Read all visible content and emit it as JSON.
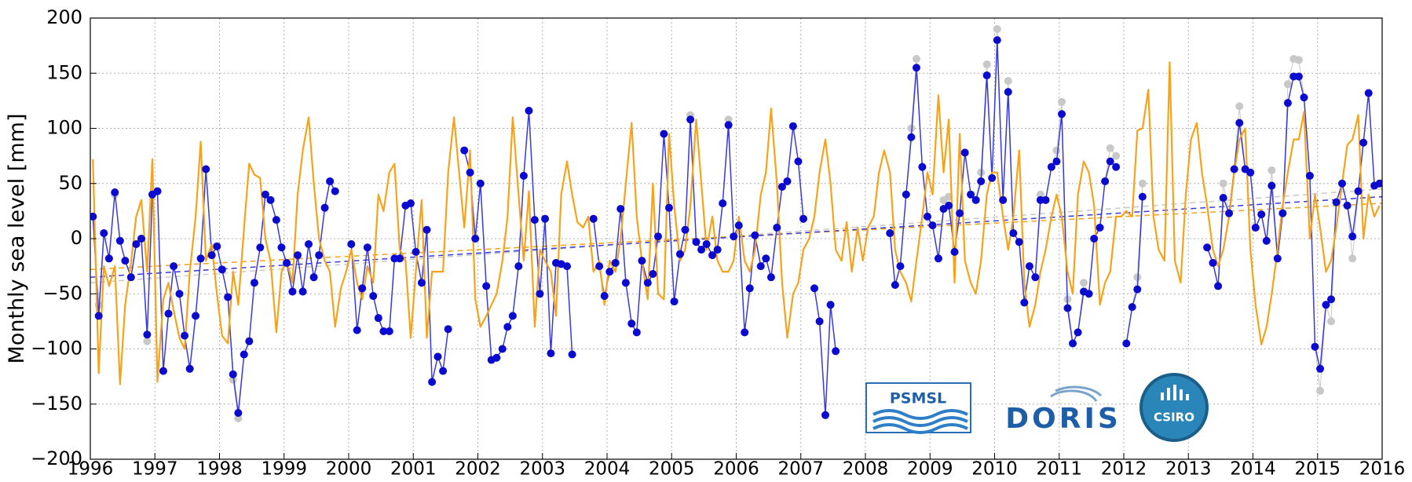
{
  "chart_data": {
    "type": "line",
    "y_label": "Monthly sea level [mm]",
    "xlim": [
      1996,
      2016
    ],
    "xticks": [
      1996,
      1997,
      1998,
      1999,
      2000,
      2001,
      2002,
      2003,
      2004,
      2005,
      2006,
      2007,
      2008,
      2009,
      2010,
      2011,
      2012,
      2013,
      2014,
      2015,
      2016
    ],
    "ylim": [
      -200,
      200
    ],
    "yticks": [
      {
        "value": -200,
        "label": "−200"
      },
      {
        "value": -150,
        "label": "−150"
      },
      {
        "value": -100,
        "label": "−100"
      },
      {
        "value": -50,
        "label": "−50"
      },
      0,
      50,
      100,
      150,
      200
    ],
    "grid": true,
    "x": [
      1996.04,
      1996.13,
      1996.21,
      1996.29,
      1996.38,
      1996.46,
      1996.54,
      1996.63,
      1996.71,
      1996.79,
      1996.88,
      1996.96,
      1997.04,
      1997.13,
      1997.21,
      1997.29,
      1997.38,
      1997.46,
      1997.54,
      1997.63,
      1997.71,
      1997.79,
      1997.88,
      1997.96,
      1998.04,
      1998.13,
      1998.21,
      1998.29,
      1998.38,
      1998.46,
      1998.54,
      1998.63,
      1998.71,
      1998.79,
      1998.88,
      1998.96,
      1999.04,
      1999.13,
      1999.21,
      1999.29,
      1999.38,
      1999.46,
      1999.54,
      1999.63,
      1999.71,
      1999.79,
      1999.88,
      1999.96,
      2000.04,
      2000.13,
      2000.21,
      2000.29,
      2000.38,
      2000.46,
      2000.54,
      2000.63,
      2000.71,
      2000.79,
      2000.88,
      2000.96,
      2001.04,
      2001.13,
      2001.21,
      2001.29,
      2001.38,
      2001.46,
      2001.54,
      2001.63,
      2001.71,
      2001.79,
      2001.88,
      2001.96,
      2002.04,
      2002.13,
      2002.21,
      2002.29,
      2002.38,
      2002.46,
      2002.54,
      2002.63,
      2002.71,
      2002.79,
      2002.88,
      2002.96,
      2003.04,
      2003.13,
      2003.21,
      2003.29,
      2003.38,
      2003.46,
      2003.54,
      2003.63,
      2003.71,
      2003.79,
      2003.88,
      2003.96,
      2004.04,
      2004.13,
      2004.21,
      2004.29,
      2004.38,
      2004.46,
      2004.54,
      2004.63,
      2004.71,
      2004.79,
      2004.88,
      2004.96,
      2005.04,
      2005.13,
      2005.21,
      2005.29,
      2005.38,
      2005.46,
      2005.54,
      2005.63,
      2005.71,
      2005.79,
      2005.88,
      2005.96,
      2006.04,
      2006.13,
      2006.21,
      2006.29,
      2006.38,
      2006.46,
      2006.54,
      2006.63,
      2006.71,
      2006.79,
      2006.88,
      2006.96,
      2007.04,
      2007.13,
      2007.21,
      2007.29,
      2007.38,
      2007.46,
      2007.54,
      2007.63,
      2007.71,
      2007.79,
      2007.88,
      2007.96,
      2008.04,
      2008.13,
      2008.21,
      2008.29,
      2008.38,
      2008.46,
      2008.54,
      2008.63,
      2008.71,
      2008.79,
      2008.88,
      2008.96,
      2009.04,
      2009.13,
      2009.21,
      2009.29,
      2009.38,
      2009.46,
      2009.54,
      2009.63,
      2009.71,
      2009.79,
      2009.88,
      2009.96,
      2010.04,
      2010.13,
      2010.21,
      2010.29,
      2010.38,
      2010.46,
      2010.54,
      2010.63,
      2010.71,
      2010.79,
      2010.88,
      2010.96,
      2011.04,
      2011.13,
      2011.21,
      2011.29,
      2011.38,
      2011.46,
      2011.54,
      2011.63,
      2011.71,
      2011.79,
      2011.88,
      2011.96,
      2012.04,
      2012.13,
      2012.21,
      2012.29,
      2012.38,
      2012.46,
      2012.54,
      2012.63,
      2012.71,
      2012.79,
      2012.88,
      2012.96,
      2013.04,
      2013.13,
      2013.21,
      2013.29,
      2013.38,
      2013.46,
      2013.54,
      2013.63,
      2013.71,
      2013.79,
      2013.88,
      2013.96,
      2014.04,
      2014.13,
      2014.21,
      2014.29,
      2014.38,
      2014.46,
      2014.54,
      2014.63,
      2014.71,
      2014.79,
      2014.88,
      2014.96,
      2015.04,
      2015.13,
      2015.21,
      2015.29,
      2015.38,
      2015.46,
      2015.54,
      2015.63,
      2015.71,
      2015.79,
      2015.88,
      2015.96
    ],
    "series": [
      {
        "color": "#c8c8c8",
        "line_width": 1,
        "markers": true,
        "values": [
          20,
          -60,
          5,
          -18,
          40,
          -2,
          -20,
          -35,
          -5,
          0,
          -93,
          40,
          43,
          -120,
          -68,
          -25,
          -50,
          -88,
          -118,
          -70,
          -18,
          63,
          -15,
          -7,
          -28,
          -53,
          -128,
          -163,
          -105,
          -93,
          -40,
          -8,
          40,
          35,
          17,
          -8,
          -22,
          -48,
          -15,
          -48,
          -5,
          -35,
          -15,
          28,
          52,
          43,
          null,
          null,
          -5,
          -83,
          -45,
          -8,
          -52,
          -72,
          -84,
          -84,
          -18,
          -18,
          30,
          32,
          -12,
          -40,
          8,
          -130,
          -107,
          -120,
          -82,
          null,
          null,
          80,
          60,
          0,
          50,
          -43,
          -110,
          -108,
          -100,
          -80,
          -70,
          -25,
          57,
          116,
          17,
          -50,
          18,
          -104,
          -22,
          -23,
          -25,
          -105,
          null,
          null,
          null,
          18,
          -25,
          -52,
          -30,
          -22,
          27,
          -40,
          -77,
          -85,
          -20,
          -40,
          -32,
          2,
          95,
          28,
          -57,
          -14,
          8,
          112,
          -3,
          -10,
          -5,
          -15,
          -10,
          32,
          108,
          2,
          12,
          -85,
          -45,
          3,
          -25,
          -18,
          -35,
          10,
          47,
          52,
          102,
          70,
          18,
          null,
          -45,
          -75,
          -160,
          -60,
          -102,
          null,
          null,
          null,
          null,
          null,
          null,
          null,
          null,
          null,
          5,
          -42,
          -25,
          40,
          100,
          163,
          65,
          20,
          12,
          -18,
          35,
          38,
          -12,
          23,
          78,
          40,
          35,
          60,
          158,
          55,
          190,
          35,
          143,
          5,
          -3,
          -58,
          -25,
          -35,
          40,
          35,
          65,
          80,
          124,
          -55,
          -95,
          -85,
          -40,
          -50,
          0,
          10,
          52,
          82,
          75,
          null,
          -95,
          -62,
          -35,
          50,
          null,
          null,
          null,
          null,
          null,
          null,
          null,
          null,
          null,
          null,
          null,
          -8,
          -22,
          -43,
          50,
          23,
          63,
          120,
          63,
          60,
          10,
          22,
          -2,
          62,
          -18,
          23,
          140,
          163,
          162,
          128,
          57,
          -98,
          -138,
          -60,
          -75,
          33,
          50,
          30,
          -18,
          43,
          87,
          132,
          48,
          50
        ]
      },
      {
        "color": "#3a3ad6",
        "point_color": "#0a0ad0",
        "line_width": 1.5,
        "markers": true,
        "values": [
          20,
          -70,
          5,
          -18,
          42,
          -2,
          -20,
          -35,
          -5,
          0,
          -87,
          40,
          43,
          -120,
          -68,
          -25,
          -50,
          -88,
          -118,
          -70,
          -18,
          63,
          -15,
          -7,
          -28,
          -53,
          -123,
          -158,
          -105,
          -93,
          -40,
          -8,
          40,
          35,
          17,
          -8,
          -22,
          -48,
          -15,
          -48,
          -5,
          -35,
          -15,
          28,
          52,
          43,
          null,
          null,
          -5,
          -83,
          -45,
          -8,
          -52,
          -72,
          -84,
          -84,
          -18,
          -18,
          30,
          32,
          -12,
          -40,
          8,
          -130,
          -107,
          -120,
          -82,
          null,
          null,
          80,
          60,
          0,
          50,
          -43,
          -110,
          -108,
          -100,
          -80,
          -70,
          -25,
          57,
          116,
          17,
          -50,
          18,
          -104,
          -22,
          -23,
          -25,
          -105,
          null,
          null,
          null,
          18,
          -25,
          -52,
          -30,
          -22,
          27,
          -40,
          -77,
          -85,
          -20,
          -40,
          -32,
          2,
          95,
          28,
          -57,
          -14,
          8,
          108,
          -3,
          -10,
          -5,
          -15,
          -10,
          32,
          103,
          2,
          12,
          -85,
          -45,
          3,
          -25,
          -18,
          -35,
          10,
          47,
          52,
          102,
          70,
          18,
          null,
          -45,
          -75,
          -160,
          -60,
          -102,
          null,
          null,
          null,
          null,
          null,
          null,
          null,
          null,
          null,
          5,
          -42,
          -25,
          40,
          92,
          155,
          65,
          20,
          12,
          -18,
          27,
          30,
          -12,
          23,
          78,
          40,
          35,
          52,
          148,
          55,
          180,
          35,
          133,
          5,
          -3,
          -58,
          -25,
          -35,
          35,
          35,
          65,
          70,
          113,
          -63,
          -95,
          -85,
          -48,
          -50,
          0,
          10,
          52,
          70,
          65,
          null,
          -95,
          -62,
          -46,
          38,
          null,
          null,
          null,
          null,
          null,
          null,
          null,
          null,
          null,
          null,
          null,
          -8,
          -22,
          -43,
          37,
          23,
          63,
          105,
          63,
          60,
          10,
          22,
          -2,
          48,
          -18,
          23,
          123,
          147,
          147,
          128,
          57,
          -98,
          -118,
          -60,
          -55,
          33,
          50,
          30,
          2,
          43,
          87,
          132,
          48,
          50
        ]
      },
      {
        "color": "#f5a31a",
        "line_width": 2.2,
        "markers": false,
        "values": [
          72,
          -122,
          -25,
          -43,
          -25,
          -132,
          -60,
          -22,
          20,
          35,
          -30,
          72,
          -130,
          -55,
          -40,
          -65,
          -90,
          -100,
          -30,
          20,
          88,
          -20,
          -5,
          -50,
          -88,
          -95,
          -30,
          -60,
          10,
          68,
          58,
          55,
          0,
          -20,
          -85,
          -30,
          -20,
          -40,
          40,
          80,
          110,
          50,
          0,
          -20,
          -30,
          -80,
          -45,
          -30,
          -10,
          -40,
          -55,
          -25,
          -40,
          40,
          25,
          60,
          68,
          -10,
          -20,
          -90,
          -30,
          35,
          -90,
          -30,
          -30,
          -30,
          60,
          110,
          60,
          10,
          80,
          -55,
          -80,
          -70,
          -60,
          -50,
          -20,
          20,
          110,
          40,
          -20,
          43,
          -80,
          -10,
          -20,
          -30,
          -70,
          40,
          70,
          40,
          15,
          10,
          20,
          -30,
          -20,
          -60,
          -20,
          -30,
          0,
          50,
          105,
          20,
          -20,
          -55,
          50,
          -50,
          -55,
          95,
          30,
          -20,
          -10,
          30,
          108,
          50,
          -10,
          20,
          -20,
          -30,
          -30,
          -20,
          20,
          -20,
          -30,
          -10,
          40,
          60,
          118,
          50,
          -40,
          -90,
          -50,
          -40,
          -10,
          0,
          20,
          60,
          90,
          50,
          -10,
          -20,
          15,
          -30,
          10,
          -20,
          10,
          20,
          60,
          80,
          60,
          -10,
          -30,
          -40,
          -57,
          -20,
          20,
          60,
          40,
          130,
          60,
          108,
          -40,
          95,
          -20,
          -40,
          -50,
          -20,
          40,
          60,
          60,
          20,
          -10,
          20,
          80,
          -40,
          -80,
          -60,
          -30,
          -10,
          20,
          40,
          20,
          -30,
          -50,
          40,
          70,
          60,
          30,
          -60,
          -40,
          -30,
          20,
          20,
          25,
          20,
          98,
          100,
          135,
          20,
          -10,
          -20,
          160,
          -20,
          -40,
          40,
          90,
          105,
          60,
          30,
          -10,
          -25,
          -10,
          20,
          60,
          90,
          100,
          -10,
          -60,
          -96,
          -80,
          -50,
          -10,
          30,
          60,
          90,
          90,
          115,
          0,
          40,
          10,
          -30,
          -20,
          10,
          50,
          85,
          90,
          112,
          0,
          40,
          20,
          30
        ]
      },
      {
        "color": "#c8c8c8",
        "dashed": true,
        "line_width": 1.5,
        "x": [
          1996,
          2016
        ],
        "values": [
          -40,
          45
        ]
      },
      {
        "color": "#f5a31a",
        "dashed": true,
        "line_width": 1.5,
        "x": [
          1996,
          2016
        ],
        "values": [
          -28,
          32
        ]
      },
      {
        "color": "#3a3ad6",
        "dashed": true,
        "line_width": 1.5,
        "x": [
          1996,
          2016
        ],
        "values": [
          -35,
          38
        ]
      }
    ],
    "logos": [
      "PSMSL",
      "DORIS",
      "CSIRO"
    ]
  }
}
